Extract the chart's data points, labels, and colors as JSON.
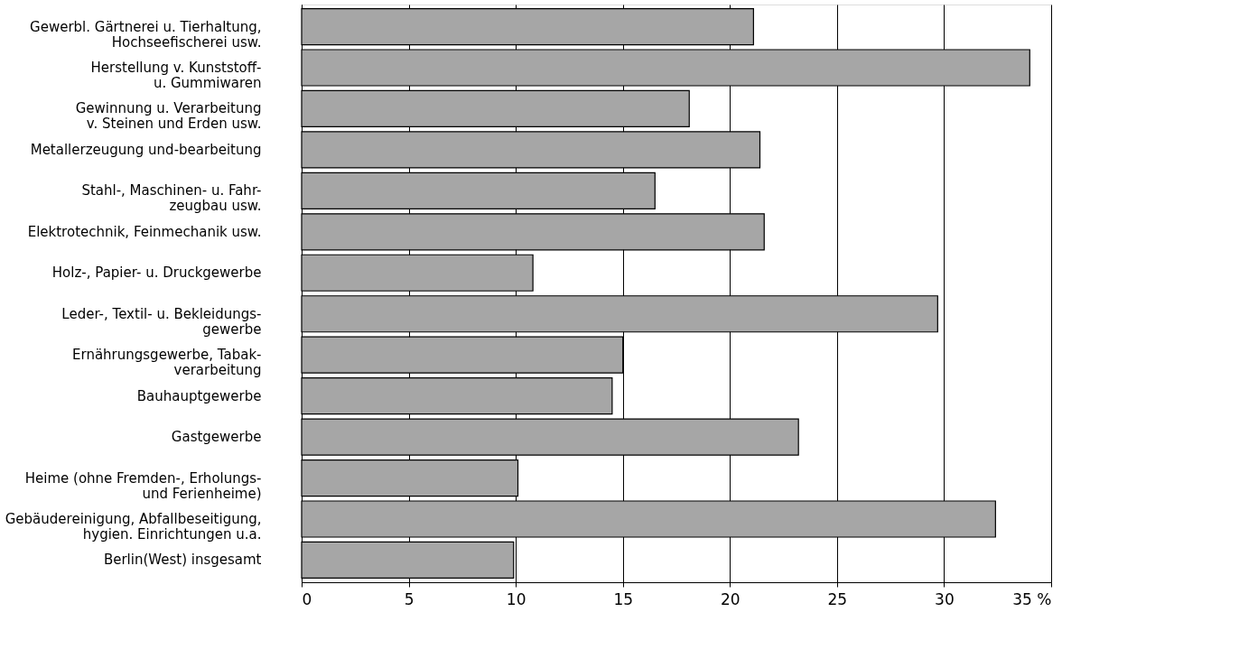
{
  "chart_data": {
    "type": "bar",
    "orientation": "horizontal",
    "categories": [
      "Gewerbl. Gärtnerei u. Tierhaltung,\nHochseefischerei usw.",
      "Herstellung v. Kunststoff-\nu. Gummiwaren",
      "Gewinnung u. Verarbeitung\nv. Steinen und Erden usw.",
      "Metallerzeugung und-bearbeitung",
      "Stahl-, Maschinen- u. Fahr-\nzeugbau usw.",
      "Elektrotechnik, Feinmechanik usw.",
      "Holz-, Papier- u. Druckgewerbe",
      "Leder-, Textil- u. Bekleidungs-\ngewerbe",
      "Ernährungsgewerbe, Tabak-\nverarbeitung",
      "Bauhauptgewerbe",
      "Gastgewerbe",
      "Heime (ohne Fremden-, Erholungs-\nund Ferienheime)",
      "Gebäudereinigung, Abfallbeseitigung,\nhygien. Einrichtungen u.a.",
      "Berlin(West) insgesamt"
    ],
    "values": [
      21.1,
      34.0,
      18.1,
      21.4,
      16.5,
      21.6,
      10.8,
      29.7,
      15.0,
      14.5,
      23.2,
      10.1,
      32.4,
      9.9
    ],
    "color": "#a6a6a6",
    "xlim": [
      0,
      35
    ],
    "xticks": [
      0,
      5,
      10,
      15,
      20,
      25,
      30,
      {
        "value": 35,
        "label": "35 %"
      }
    ],
    "grid": "x"
  }
}
